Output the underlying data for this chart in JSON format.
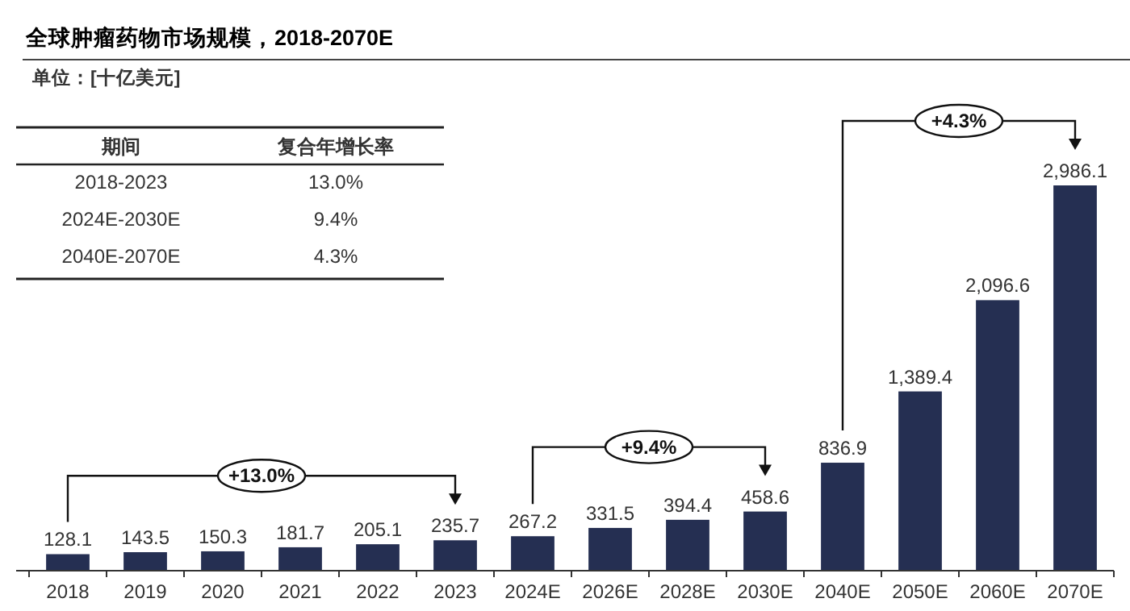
{
  "chart_data": {
    "type": "bar",
    "title": "全球肿瘤药物市场规模，2018-2070E",
    "subtitle": "单位：[十亿美元]",
    "categories": [
      "2018",
      "2019",
      "2020",
      "2021",
      "2022",
      "2023",
      "2024E",
      "2026E",
      "2028E",
      "2030E",
      "2040E",
      "2050E",
      "2060E",
      "2070E"
    ],
    "values": [
      128.1,
      143.5,
      150.3,
      181.7,
      205.1,
      235.7,
      267.2,
      331.5,
      394.4,
      458.6,
      836.9,
      1389.4,
      2096.6,
      2986.1
    ],
    "color": "#252f52",
    "value_labels": [
      "128.1",
      "143.5",
      "150.3",
      "181.7",
      "205.1",
      "235.7",
      "267.2",
      "331.5",
      "394.4",
      "458.6",
      "836.9",
      "1,389.4",
      "2,096.6",
      "2,986.1"
    ],
    "annotations": [
      "期间",
      "复合年增长率",
      "2018-2023",
      "13.0%",
      "2024E-2030E",
      "9.4%",
      "2040E-2070E",
      "4.3%",
      "+13.0%",
      "+9.4%",
      "+4.3%"
    ]
  }
}
